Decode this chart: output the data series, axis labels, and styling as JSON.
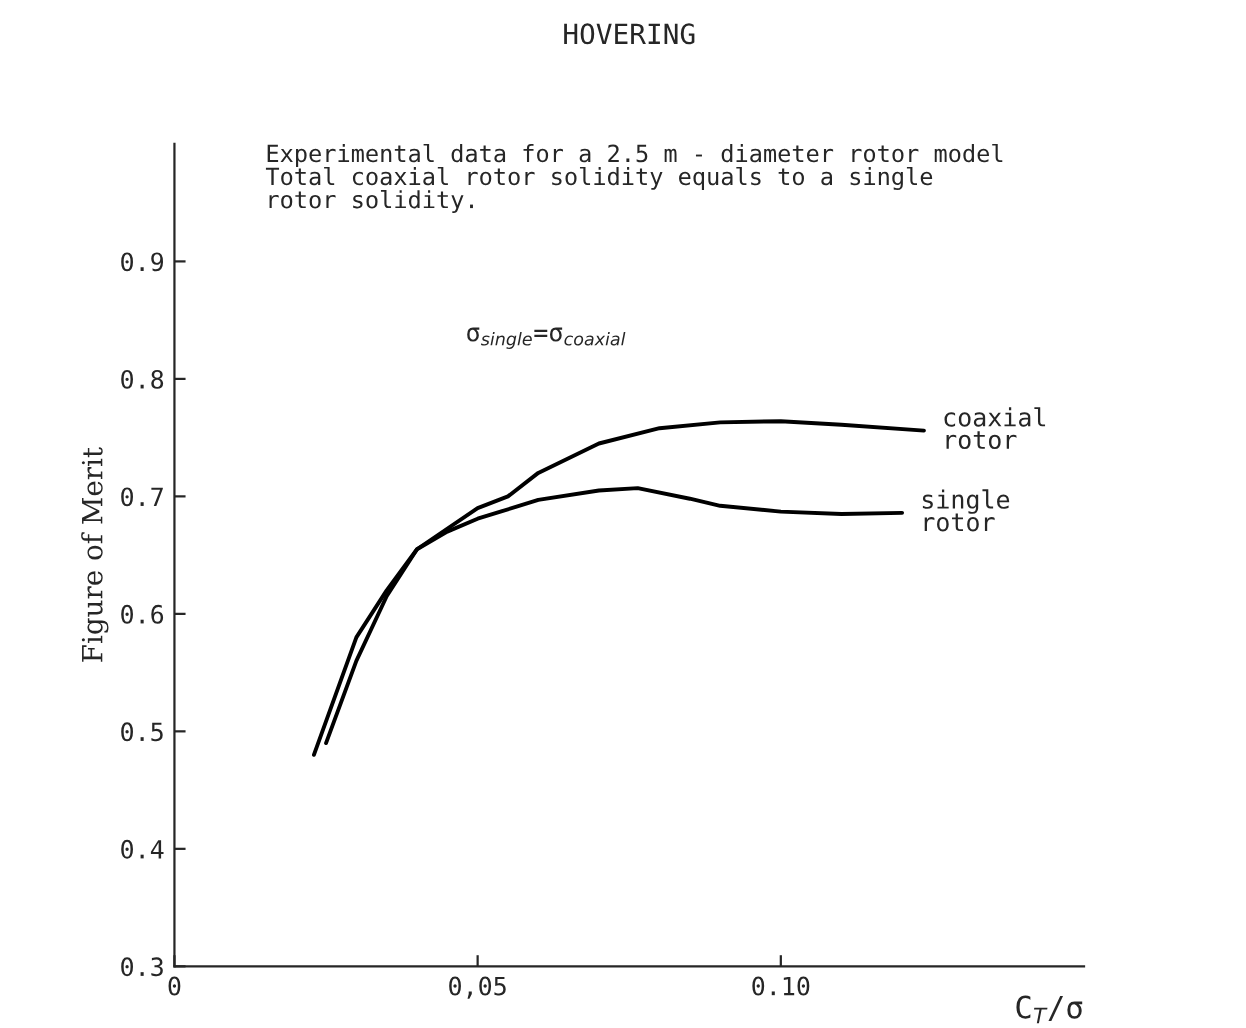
{
  "chart_data": {
    "type": "line",
    "title": "HOVERING",
    "xlabel": "C$_{T}$/σ",
    "ylabel": "Figure of Merit",
    "annotations": [
      "Experimental data for a 2.5 m - diameter rotor model\nTotal coaxial rotor solidity equals to a single\nrotor solidity.",
      "σ$_{single}$=σ$_{coaxial}$"
    ],
    "series": [
      {
        "name": "coaxial\nrotor",
        "color": "#000000",
        "x": [
          0.025,
          0.03,
          0.035,
          0.04,
          0.05,
          0.055,
          0.06,
          0.07,
          0.08,
          0.09,
          0.1,
          0.11,
          0.1236
        ],
        "values": [
          0.49,
          0.56,
          0.615,
          0.655,
          0.69,
          0.7,
          0.72,
          0.745,
          0.758,
          0.763,
          0.764,
          0.761,
          0.756
        ]
      },
      {
        "name": "single\nrotor",
        "color": "#000000",
        "x": [
          0.023,
          0.03,
          0.035,
          0.04,
          0.045,
          0.05,
          0.06,
          0.07,
          0.0764,
          0.085,
          0.09,
          0.1,
          0.11,
          0.12
        ],
        "values": [
          0.48,
          0.58,
          0.62,
          0.655,
          0.67,
          0.681,
          0.697,
          0.705,
          0.707,
          0.698,
          0.692,
          0.687,
          0.685,
          0.686
        ]
      }
    ],
    "xlim": [
      0,
      0.15
    ],
    "ylim": [
      0.3,
      1.0
    ],
    "xticks": [
      0,
      {
        "value": 0.05,
        "label": "0,05"
      },
      {
        "value": 0.1,
        "label": "0.10"
      }
    ],
    "yticks": [
      {
        "value": 0.3,
        "label": "0.3"
      },
      {
        "value": 0.4,
        "label": "0.4"
      },
      {
        "value": 0.5,
        "label": "0.5"
      },
      {
        "value": 0.6,
        "label": "0.6"
      },
      {
        "value": 0.7,
        "label": "0.7"
      },
      {
        "value": 0.8,
        "label": "0.8"
      },
      {
        "value": 0.9,
        "label": "0.9"
      }
    ],
    "grid": false,
    "legend": false,
    "marker": "none",
    "line_style": "solid"
  }
}
